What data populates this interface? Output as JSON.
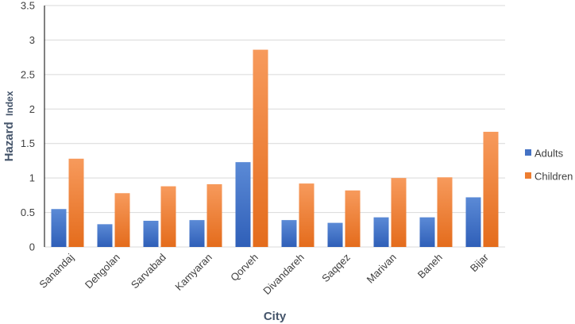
{
  "chart_data": {
    "type": "bar",
    "categories": [
      "Sanandaj",
      "Dehgolan",
      "Sarvabad",
      "Kamyaran",
      "Qorveh",
      "Divandareh",
      "Saqqez",
      "Marivan",
      "Baneh",
      "Bijar"
    ],
    "series": [
      {
        "name": "Adults",
        "values": [
          0.55,
          0.33,
          0.38,
          0.39,
          1.23,
          0.39,
          0.35,
          0.43,
          0.43,
          0.72
        ],
        "color": "#4472c4"
      },
      {
        "name": "Children",
        "values": [
          1.28,
          0.78,
          0.88,
          0.91,
          2.86,
          0.92,
          0.82,
          1.0,
          1.01,
          1.67
        ],
        "color": "#ed7d31"
      }
    ],
    "yticks": [
      "0",
      "0.5",
      "1",
      "1.5",
      "2",
      "2.5",
      "3",
      "3.5"
    ],
    "ylim": [
      0,
      3.5
    ],
    "xlabel": "City",
    "ylabel_main": "Hazard",
    "ylabel_sub": "Index",
    "grid": true,
    "legend_position": "right"
  }
}
